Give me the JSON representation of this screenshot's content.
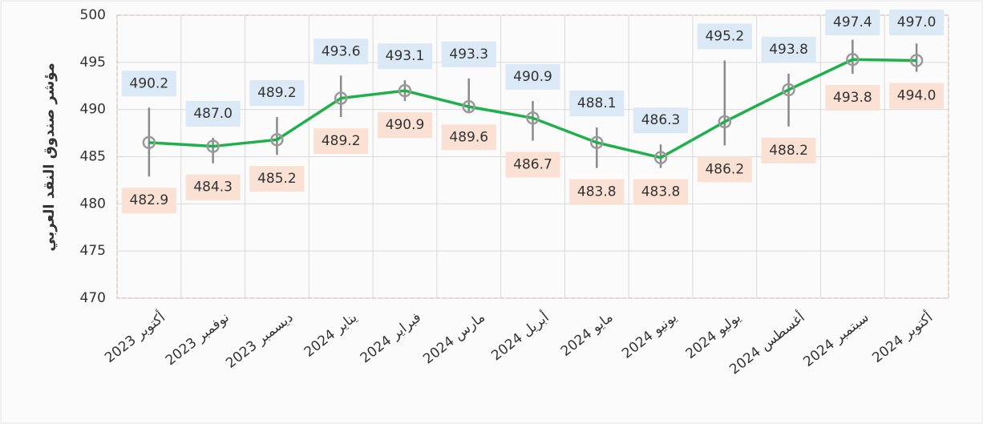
{
  "chart_data": {
    "type": "line",
    "y_label": "مؤشر صندوق النقد العربي",
    "categories": [
      "أكتوبر 2023",
      "نوفمبر 2023",
      "ديسمبر 2023",
      "يناير 2024",
      "فبراير 2024",
      "مارس 2024",
      "أبريل 2024",
      "مايو 2024",
      "يونيو 2024",
      "يوليو 2024",
      "أغسطس 2024",
      "سبتمبر 2024",
      "أكتوبر 2024"
    ],
    "series": [
      {
        "color": "#1fb04c",
        "values": [
          486.5,
          486.1,
          486.8,
          491.2,
          492.0,
          490.3,
          489.1,
          486.5,
          484.9,
          488.7,
          492.1,
          495.3,
          495.2
        ]
      },
      {
        "color": "#dbe8f6",
        "values": [
          490.2,
          487.0,
          489.2,
          493.6,
          493.1,
          493.3,
          490.9,
          488.1,
          486.3,
          495.2,
          493.8,
          497.4,
          497.0
        ],
        "value_labels": [
          "490.2",
          "487.0",
          "489.2",
          "493.6",
          "493.1",
          "493.3",
          "490.9",
          "488.1",
          "486.3",
          "495.2",
          "493.8",
          "497.4",
          "497.0"
        ]
      },
      {
        "color": "#fbe1d3",
        "values": [
          482.9,
          484.3,
          485.2,
          489.2,
          490.9,
          489.6,
          486.7,
          483.8,
          483.8,
          486.2,
          488.2,
          493.8,
          494.0
        ],
        "value_labels": [
          "482.9",
          "484.3",
          "485.2",
          "489.2",
          "490.9",
          "489.6",
          "486.7",
          "483.8",
          "483.8",
          "486.2",
          "488.2",
          "493.8",
          "494.0"
        ]
      }
    ],
    "ylim": [
      470,
      500
    ],
    "yticks": [
      470,
      475,
      480,
      485,
      490,
      495,
      500
    ],
    "grid": true
  }
}
